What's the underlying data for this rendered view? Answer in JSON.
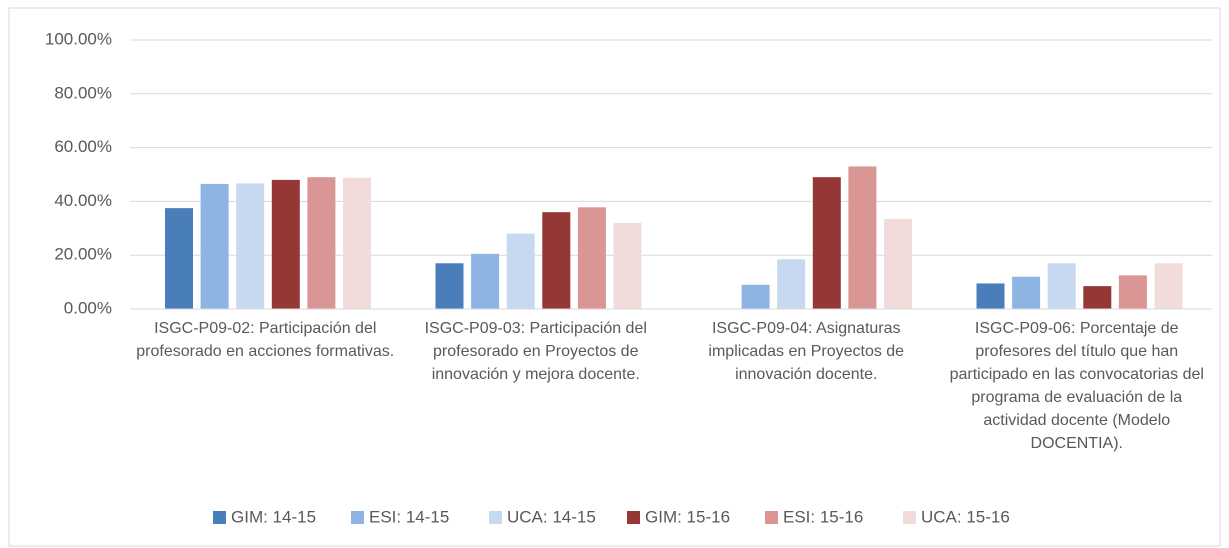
{
  "chart_data": {
    "type": "bar",
    "categories": [
      "ISGC-P09-02: Participación del profesorado en acciones formativas.",
      "ISGC-P09-03: Participación del profesorado en Proyectos de innovación y mejora docente.",
      "ISGC-P09-04: Asignaturas implicadas en Proyectos de innovación docente.",
      "ISGC-P09-06: Porcentaje de profesores del título que han participado en las convocatorias del programa de evaluación de la actividad docente (Modelo DOCENTIA)."
    ],
    "series": [
      {
        "name": "GIM: 14-15",
        "color": "#4a7ebb",
        "values": [
          37.5,
          17,
          0,
          9.5
        ]
      },
      {
        "name": "ESI: 14-15",
        "color": "#8eb4e3",
        "values": [
          46.5,
          20.5,
          9,
          12
        ]
      },
      {
        "name": "UCA: 14-15",
        "color": "#c6d9f1",
        "values": [
          46.7,
          28,
          18.5,
          17
        ]
      },
      {
        "name": "GIM: 15-16",
        "color": "#953735",
        "values": [
          48,
          36,
          49,
          8.5
        ]
      },
      {
        "name": "ESI: 15-16",
        "color": "#d99694",
        "values": [
          49,
          37.8,
          53,
          12.5
        ]
      },
      {
        "name": "UCA: 15-16",
        "color": "#f2dcdb",
        "values": [
          48.8,
          32,
          33.5,
          17
        ]
      }
    ],
    "ylim": [
      0,
      100
    ],
    "yticks": [
      {
        "value": 0,
        "label": "0.00%"
      },
      {
        "value": 20,
        "label": "20.00%"
      },
      {
        "value": 40,
        "label": "40.00%"
      },
      {
        "value": 60,
        "label": "60.00%"
      },
      {
        "value": 80,
        "label": "80.00%"
      },
      {
        "value": 100,
        "label": "100.00%"
      }
    ],
    "grid": true
  }
}
